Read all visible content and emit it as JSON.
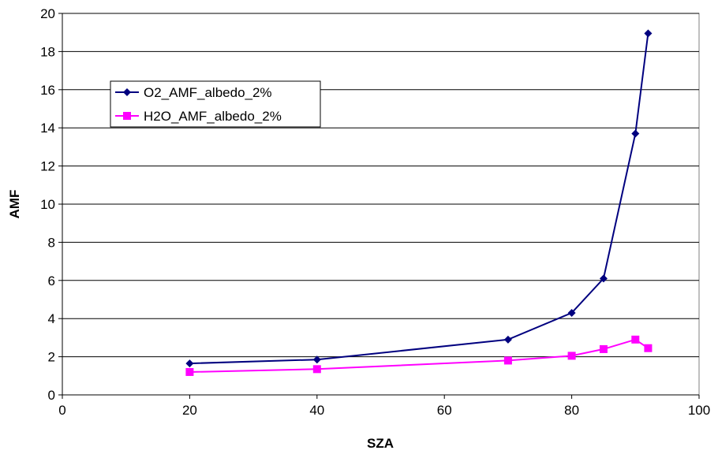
{
  "chart_data": {
    "type": "line",
    "title": "",
    "xlabel": "SZA",
    "ylabel": "AMF",
    "xlim": [
      0,
      100
    ],
    "ylim": [
      0,
      20
    ],
    "xticks": [
      0,
      20,
      40,
      60,
      80,
      100
    ],
    "yticks": [
      0,
      2,
      4,
      6,
      8,
      10,
      12,
      14,
      16,
      18,
      20
    ],
    "grid": "horizontal",
    "legend_position": "upper-left inside plot",
    "series": [
      {
        "name": "O2_AMF_albedo_2%",
        "color": "#00007f",
        "marker": "diamond",
        "x": [
          20,
          40,
          70,
          80,
          85,
          90,
          92
        ],
        "y": [
          1.65,
          1.85,
          2.9,
          4.3,
          6.1,
          13.7,
          18.95
        ]
      },
      {
        "name": "H2O_AMF_albedo_2%",
        "color": "#ff00ff",
        "marker": "square",
        "x": [
          20,
          40,
          70,
          80,
          85,
          90,
          92
        ],
        "y": [
          1.2,
          1.35,
          1.8,
          2.05,
          2.4,
          2.9,
          2.45
        ]
      }
    ]
  }
}
